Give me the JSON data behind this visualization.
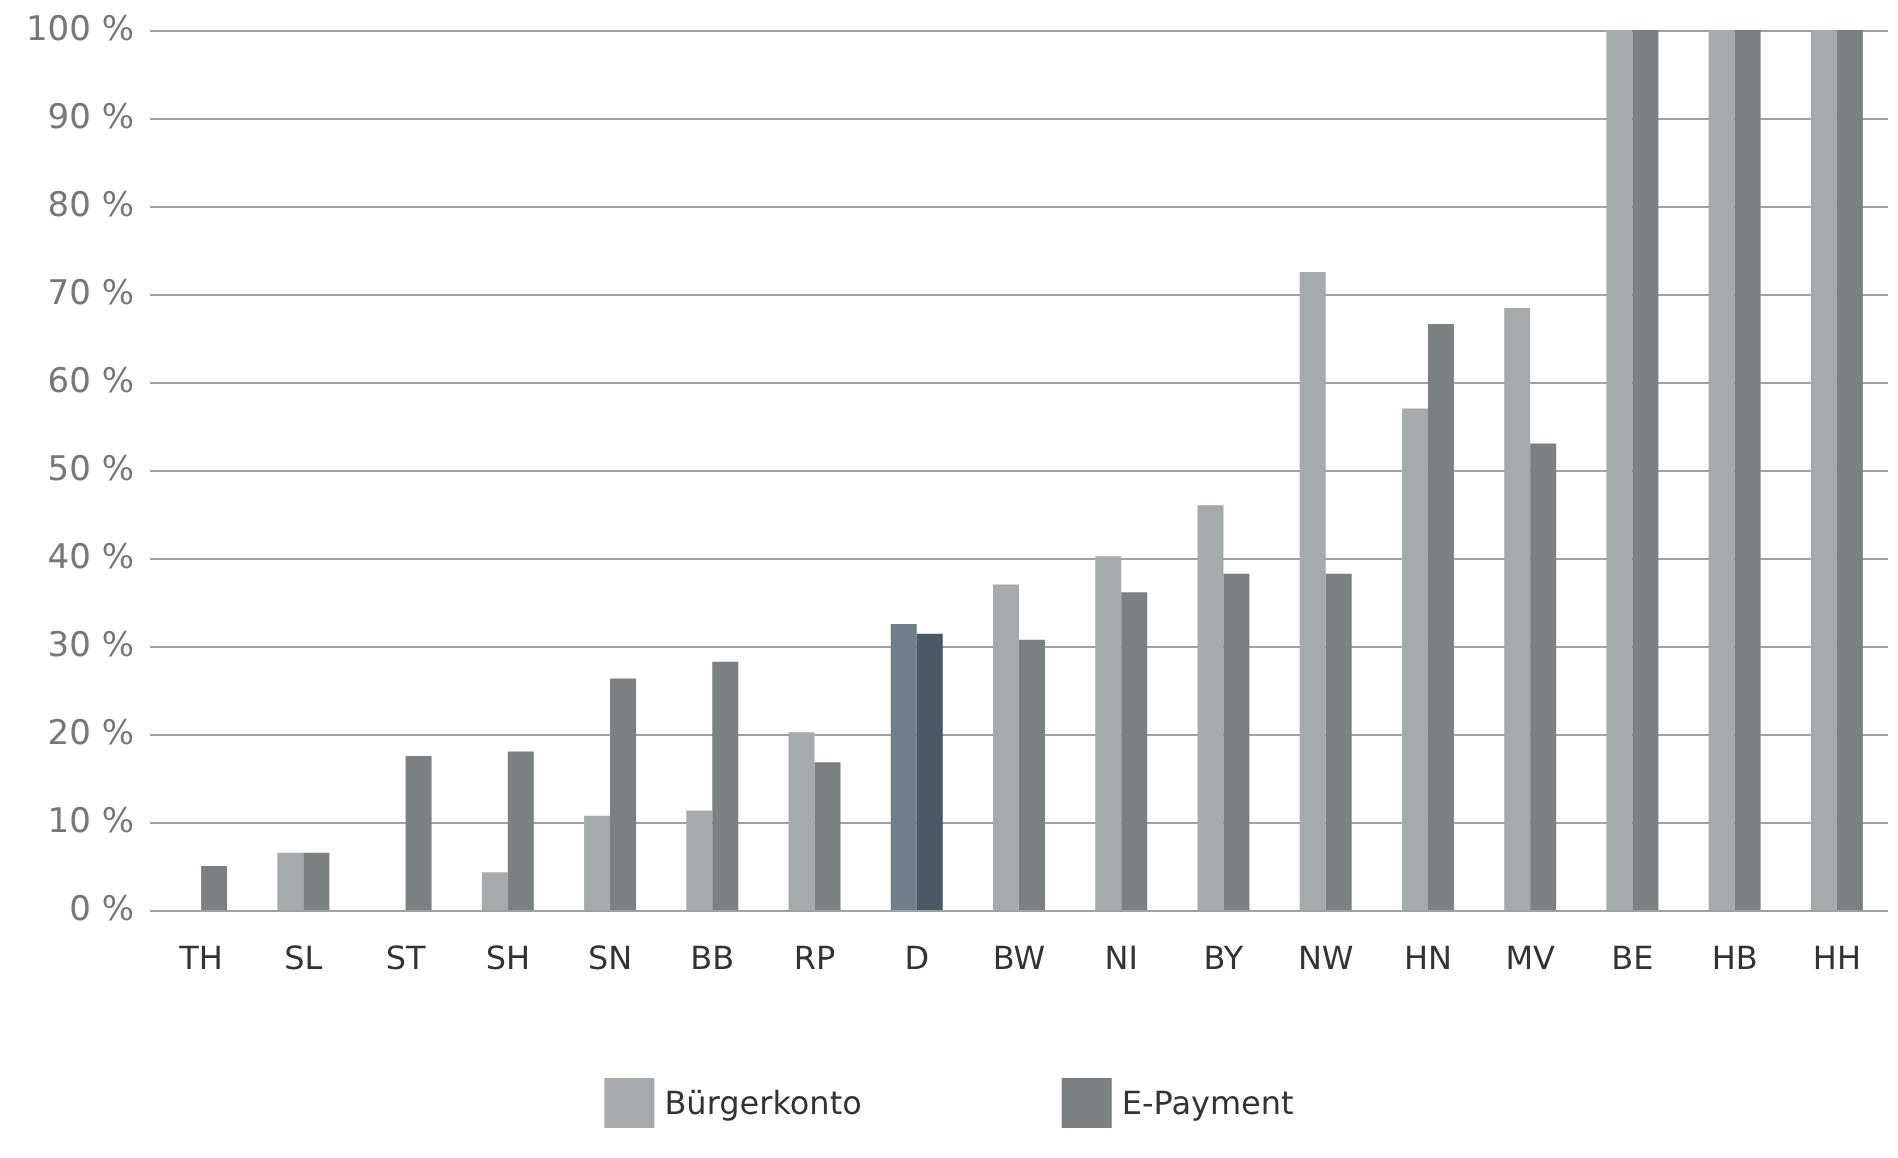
{
  "chart_data": {
    "type": "bar",
    "categories": [
      "TH",
      "SL",
      "ST",
      "SH",
      "SN",
      "BB",
      "RP",
      "D",
      "BW",
      "NI",
      "BY",
      "NW",
      "HN",
      "MV",
      "BE",
      "HB",
      "HH"
    ],
    "series": [
      {
        "name": "Bürgerkonto",
        "color": "#a5aaac",
        "colors": [
          "#a5aaac",
          "#a5aaac",
          "#a5aaac",
          "#a5aaac",
          "#a5aaac",
          "#a5aaac",
          "#a5aaac",
          "#6f808b",
          "#a5aaac",
          "#a5aaac",
          "#a5aaac",
          "#a5aaac",
          "#a5aaac",
          "#a5aaac",
          "#a5aaac",
          "#a5aaac",
          "#a5aaac"
        ],
        "values": [
          0,
          6.5,
          0,
          4.3,
          10.7,
          11.3,
          20.2,
          32.5,
          37,
          40.2,
          46,
          72.5,
          57,
          68.4,
          100,
          100,
          100
        ]
      },
      {
        "name": "E-Payment",
        "color": "#7b8082",
        "colors": [
          "#7b8082",
          "#7b8082",
          "#7b8082",
          "#7b8082",
          "#7b8082",
          "#7b8082",
          "#7b8082",
          "#4b5b65",
          "#7b8082",
          "#7b8082",
          "#7b8082",
          "#7b8082",
          "#7b8082",
          "#7b8082",
          "#7b8082",
          "#7b8082",
          "#7b8082"
        ],
        "values": [
          5,
          6.5,
          17.5,
          18,
          26.3,
          28.2,
          16.8,
          31.4,
          30.7,
          36.1,
          38.2,
          38.2,
          66.6,
          53,
          100,
          100,
          100
        ]
      }
    ],
    "ylim": [
      0,
      100
    ],
    "yticks": [
      {
        "value": 0,
        "label": "0 %"
      },
      {
        "value": 10,
        "label": "10 %"
      },
      {
        "value": 20,
        "label": "20 %"
      },
      {
        "value": 30,
        "label": "30 %"
      },
      {
        "value": 40,
        "label": "40 %"
      },
      {
        "value": 50,
        "label": "50 %"
      },
      {
        "value": 60,
        "label": "60 %"
      },
      {
        "value": 70,
        "label": "70 %"
      },
      {
        "value": 80,
        "label": "80 %"
      },
      {
        "value": 90,
        "label": "90 %"
      },
      {
        "value": 100,
        "label": "100 %"
      }
    ],
    "grid": "y",
    "legend": "bottom"
  }
}
